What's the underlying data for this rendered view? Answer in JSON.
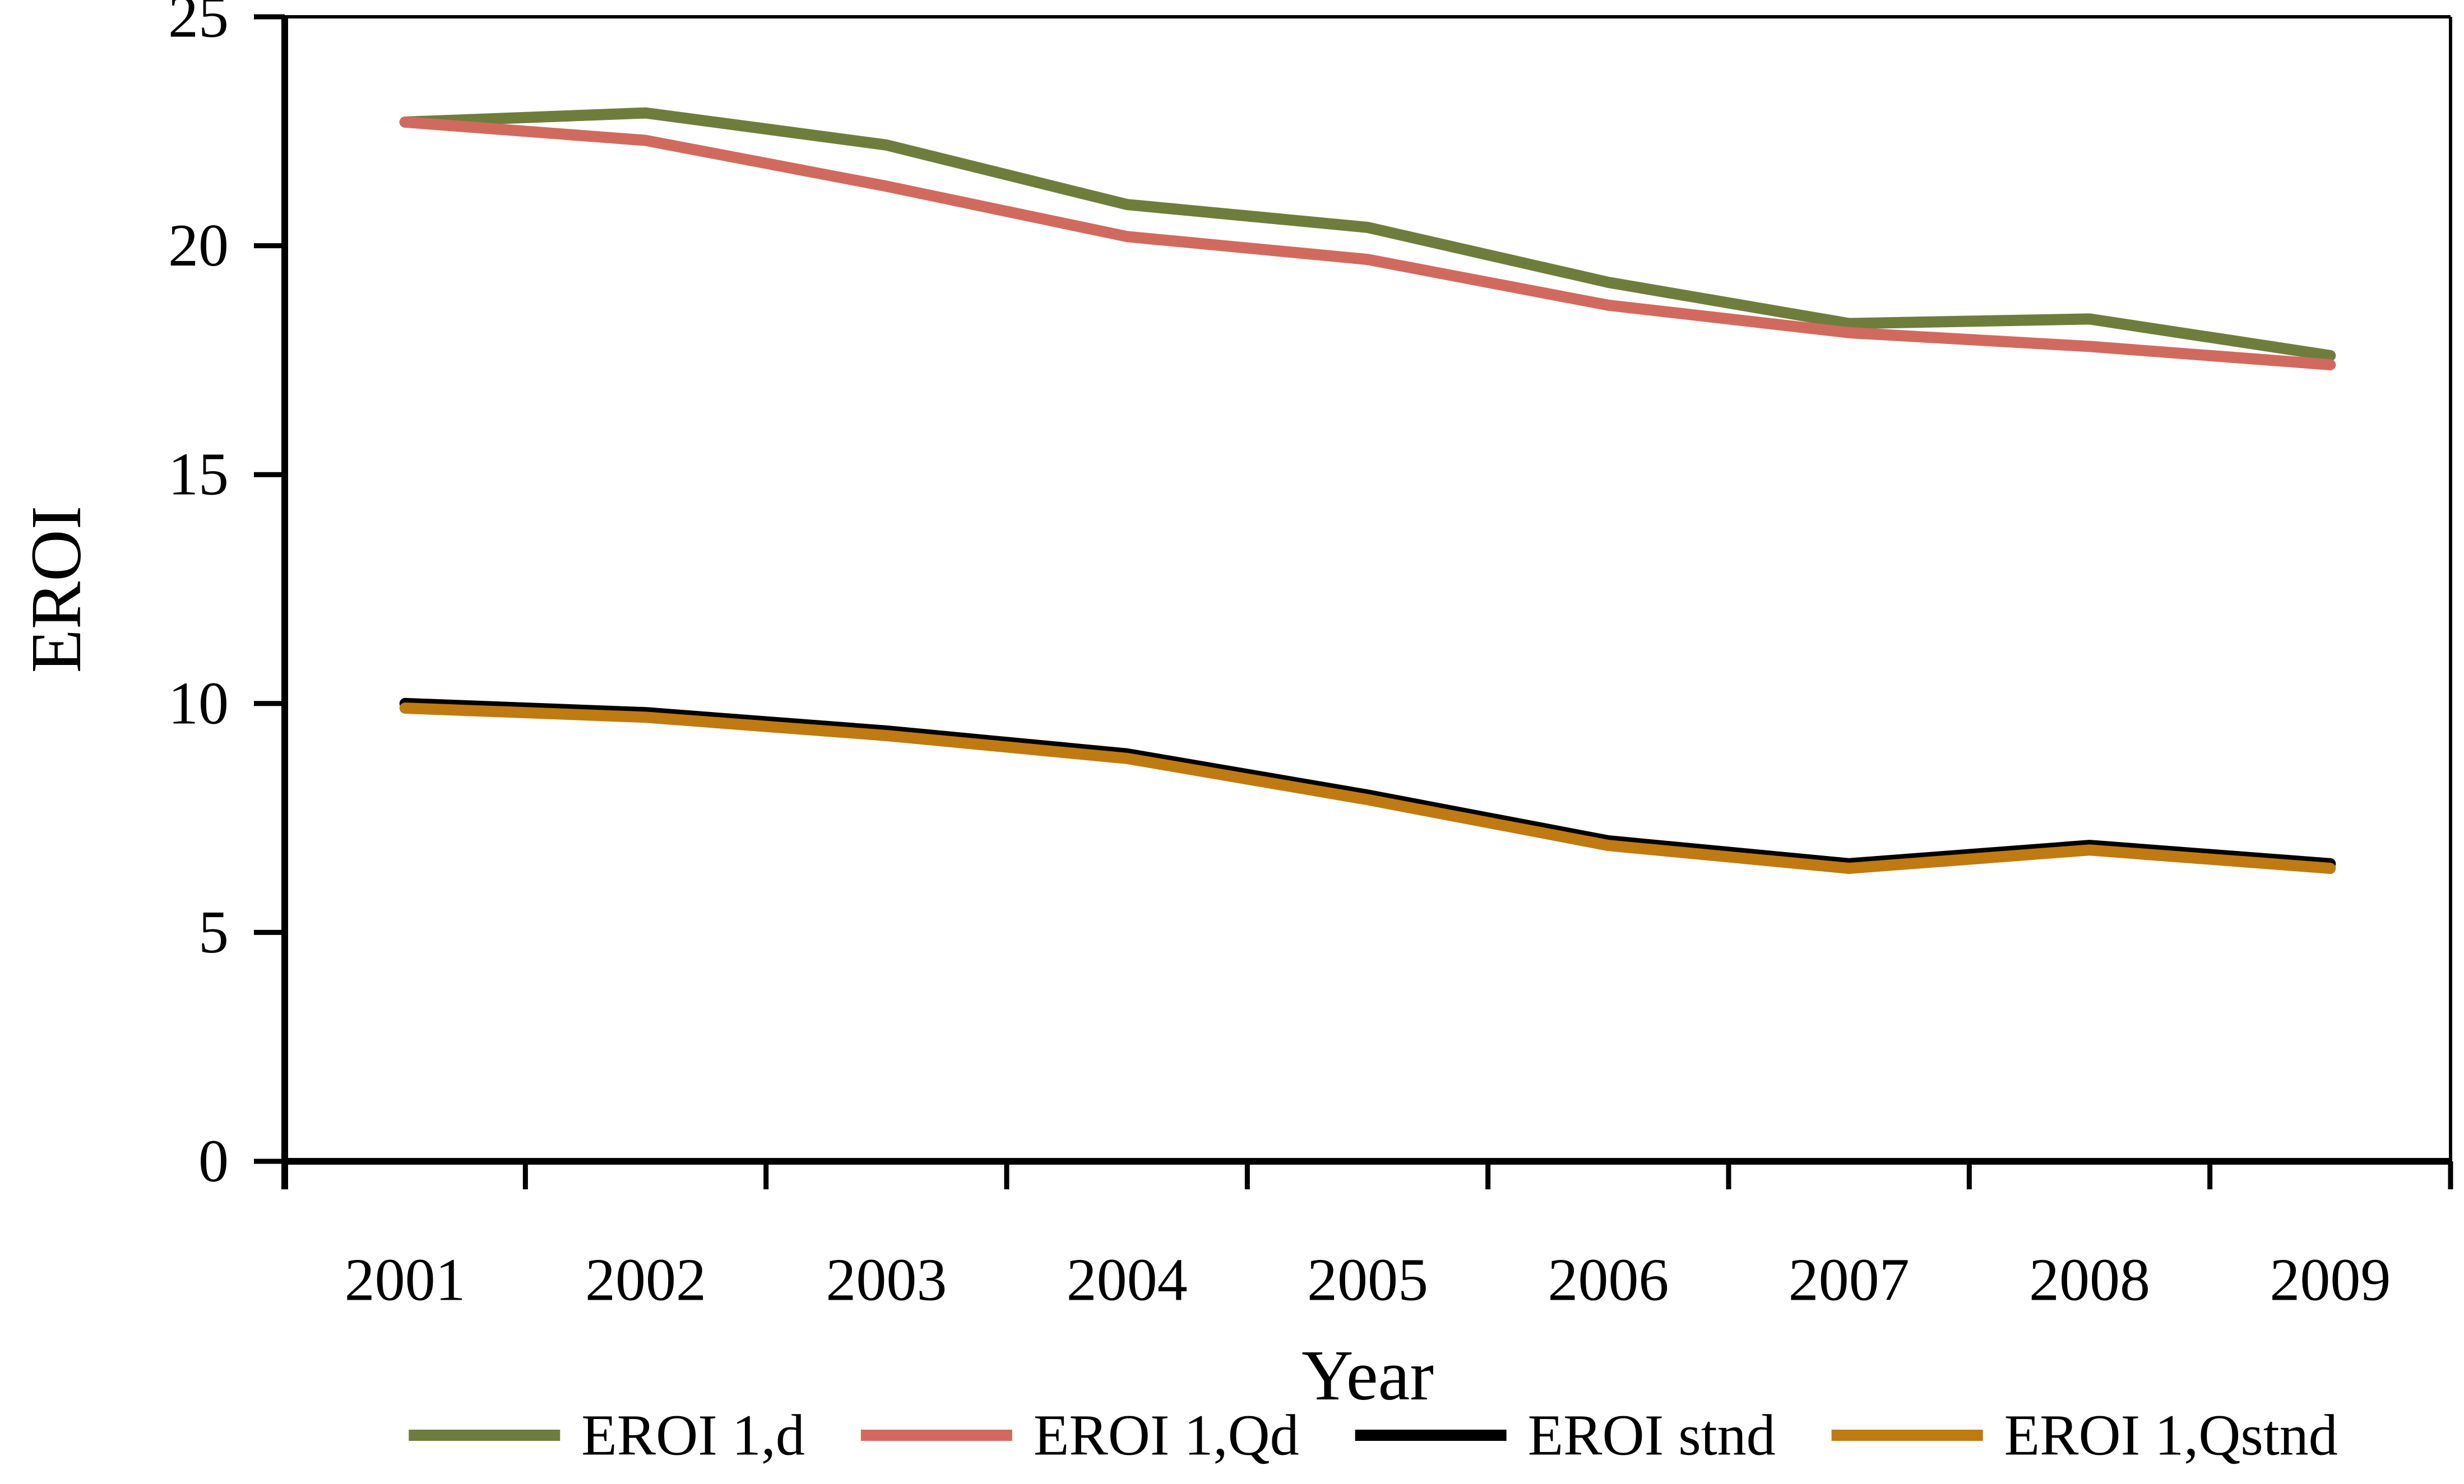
{
  "chart_data": {
    "type": "line",
    "title": "",
    "xlabel": "Year",
    "ylabel": "EROI",
    "x": [
      "2001",
      "2002",
      "2003",
      "2004",
      "2005",
      "2006",
      "2007",
      "2008",
      "2009"
    ],
    "series": [
      {
        "name": "EROI 1,d",
        "color": "#6F7D3C",
        "values": [
          22.7,
          22.9,
          22.2,
          20.9,
          20.4,
          19.2,
          18.3,
          18.4,
          17.6
        ]
      },
      {
        "name": "EROI 1,Qd",
        "color": "#D16A5E",
        "values": [
          22.7,
          22.3,
          21.3,
          20.2,
          19.7,
          18.7,
          18.1,
          17.8,
          17.4
        ]
      },
      {
        "name": "EROI stnd",
        "color": "#000000",
        "values": [
          10.0,
          9.8,
          9.4,
          8.9,
          8.0,
          7.0,
          6.5,
          6.9,
          6.5
        ]
      },
      {
        "name": "EROI 1,Qstnd",
        "color": "#C07A12",
        "values": [
          9.9,
          9.7,
          9.3,
          8.8,
          7.9,
          6.9,
          6.4,
          6.8,
          6.4
        ]
      }
    ],
    "ylim": [
      0,
      25
    ],
    "yticks": [
      0,
      5,
      10,
      15,
      20,
      25
    ],
    "grid": false,
    "legend_position": "bottom",
    "axis_color": "#000000"
  }
}
